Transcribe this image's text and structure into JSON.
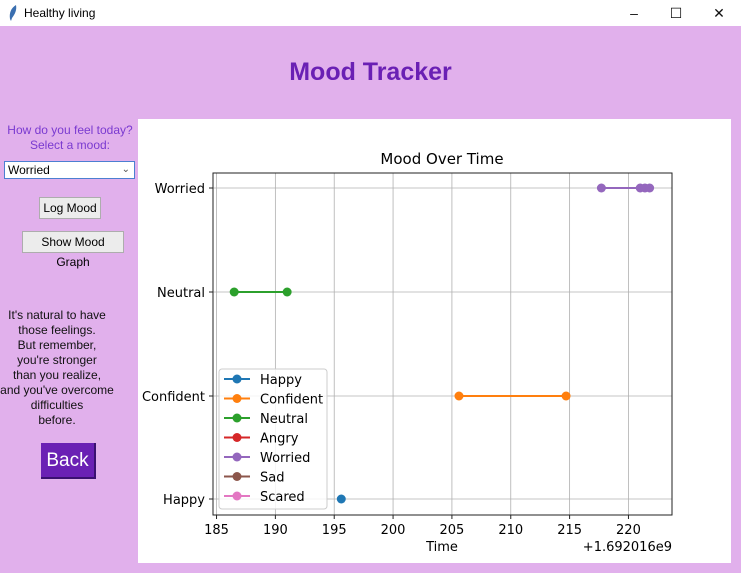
{
  "window": {
    "title": "Healthy living",
    "controls": {
      "minimize": "–",
      "maximize": "☐",
      "close": "✕"
    }
  },
  "header": {
    "title": "Mood Tracker"
  },
  "sidebar": {
    "prompt_line1": "How do you feel today?",
    "prompt_line2": "Select a mood:",
    "mood_select": {
      "value": "Worried",
      "chevron": "⌄"
    },
    "log_button": "Log Mood",
    "graph_button": "Show Mood Graph",
    "message_lines": [
      "It's natural to have",
      "those feelings.",
      "But remember,",
      "you're stronger",
      "than you realize,",
      "and you've overcome",
      "difficulties",
      "before."
    ],
    "back_button": "Back"
  },
  "colors": {
    "background": "#e1b0ec",
    "accent": "#6a20b4",
    "prompt": "#7a3ad0"
  },
  "chart_data": {
    "type": "line",
    "title": "Mood Over Time",
    "xlabel": "Time",
    "ylabel": "",
    "x_offset_label": "+1.692016e9",
    "xlim": [
      184.7,
      223.7
    ],
    "x_ticks": [
      185,
      190,
      195,
      200,
      205,
      210,
      215,
      220
    ],
    "y_categories": [
      "Happy",
      "Confident",
      "Neutral",
      "Worried"
    ],
    "grid": true,
    "legend_position": "lower left",
    "legend": [
      "Happy",
      "Confident",
      "Neutral",
      "Angry",
      "Worried",
      "Sad",
      "Scared"
    ],
    "series": [
      {
        "name": "Happy",
        "color": "#1f77b4",
        "points": [
          [
            195.6,
            "Happy"
          ]
        ]
      },
      {
        "name": "Confident",
        "color": "#ff7f0e",
        "points": [
          [
            205.6,
            "Confident"
          ],
          [
            214.7,
            "Confident"
          ]
        ]
      },
      {
        "name": "Neutral",
        "color": "#2ca02c",
        "points": [
          [
            186.5,
            "Neutral"
          ],
          [
            191.0,
            "Neutral"
          ]
        ]
      },
      {
        "name": "Angry",
        "color": "#d62728",
        "points": []
      },
      {
        "name": "Worried",
        "color": "#9467bd",
        "points": [
          [
            217.7,
            "Worried"
          ],
          [
            221.0,
            "Worried"
          ],
          [
            221.4,
            "Worried"
          ],
          [
            221.8,
            "Worried"
          ]
        ]
      },
      {
        "name": "Sad",
        "color": "#8c564b",
        "points": []
      },
      {
        "name": "Scared",
        "color": "#e377c2",
        "points": []
      }
    ]
  }
}
